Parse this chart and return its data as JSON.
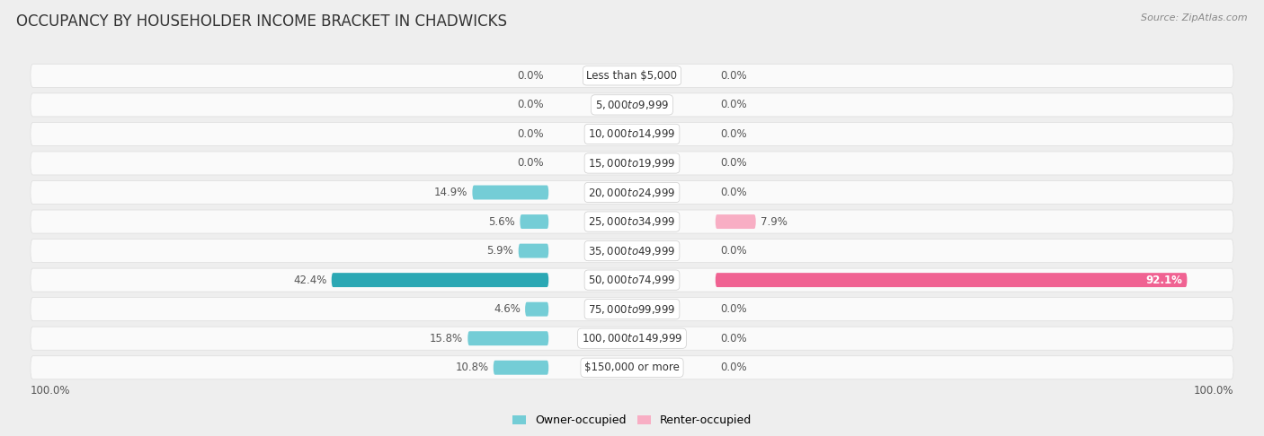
{
  "title": "OCCUPANCY BY HOUSEHOLDER INCOME BRACKET IN CHADWICKS",
  "source": "Source: ZipAtlas.com",
  "categories": [
    "Less than $5,000",
    "$5,000 to $9,999",
    "$10,000 to $14,999",
    "$15,000 to $19,999",
    "$20,000 to $24,999",
    "$25,000 to $34,999",
    "$35,000 to $49,999",
    "$50,000 to $74,999",
    "$75,000 to $99,999",
    "$100,000 to $149,999",
    "$150,000 or more"
  ],
  "owner_values": [
    0.0,
    0.0,
    0.0,
    0.0,
    14.9,
    5.6,
    5.9,
    42.4,
    4.6,
    15.8,
    10.8
  ],
  "renter_values": [
    0.0,
    0.0,
    0.0,
    0.0,
    0.0,
    7.9,
    0.0,
    92.1,
    0.0,
    0.0,
    0.0
  ],
  "owner_color_normal": "#74cdd6",
  "owner_color_large": "#2ba8b4",
  "renter_color_normal": "#f8aec4",
  "renter_color_large": "#f06292",
  "background_color": "#eeeeee",
  "row_background": "#fafafa",
  "axis_label_left": "100.0%",
  "axis_label_right": "100.0%",
  "legend_owner": "Owner-occupied",
  "legend_renter": "Renter-occupied",
  "title_fontsize": 12,
  "label_fontsize": 8.5,
  "category_fontsize": 8.5
}
